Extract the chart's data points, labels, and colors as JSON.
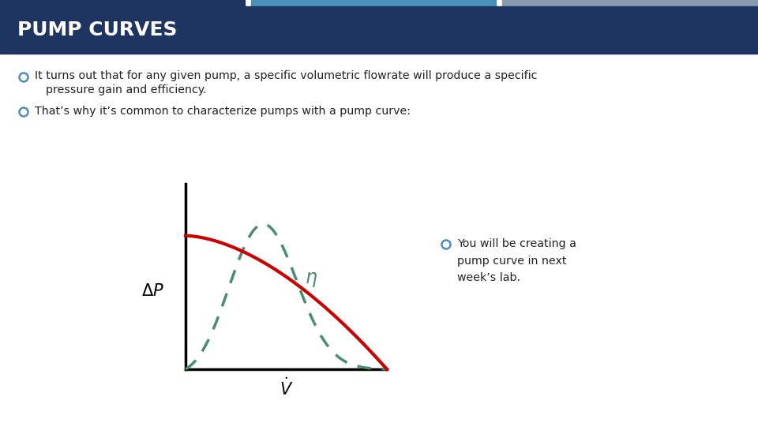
{
  "title": "PUMP CURVES",
  "title_bg_color": "#1e3461",
  "title_text_color": "#ffffff",
  "header_bar1_color": "#1e3461",
  "header_bar2_color": "#4a90b8",
  "header_bar3_color": "#8a9ab0",
  "bg_color": "#ffffff",
  "bullet_color": "#4a90b8",
  "text_color": "#222222",
  "bullet1_line1": "It turns out that for any given pump, a specific volumetric flowrate will produce a specific",
  "bullet1_line2": "pressure gain and efficiency.",
  "bullet2": "That’s why it’s common to characterize pumps with a pump curve:",
  "bullet3": "You will be creating a\npump curve in next\nweek’s lab.",
  "red_curve_color": "#cc0000",
  "green_curve_color": "#4a8c6e",
  "axis_color": "#000000"
}
